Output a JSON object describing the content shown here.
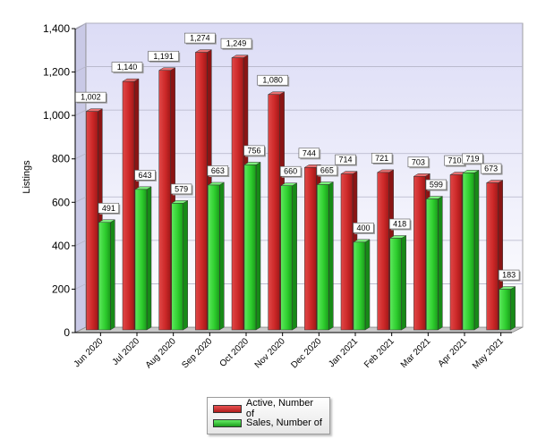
{
  "chart_data": {
    "type": "bar",
    "title": "",
    "xlabel": "",
    "ylabel": "Listings",
    "ylim": [
      0,
      1400
    ],
    "yticks": [
      0,
      200,
      400,
      600,
      800,
      1000,
      1200,
      1400
    ],
    "ytick_labels": [
      "0",
      "200",
      "400",
      "600",
      "800",
      "1,000",
      "1,200",
      "1,400"
    ],
    "grid": true,
    "legend_position": "bottom-center",
    "categories": [
      "Jun 2020",
      "Jul 2020",
      "Aug 2020",
      "Sep 2020",
      "Oct 2020",
      "Nov 2020",
      "Dec 2020",
      "Jan 2021",
      "Feb 2021",
      "Mar 2021",
      "Apr 2021",
      "May 2021"
    ],
    "series": [
      {
        "name": "Active, Number of",
        "color": "#d42a2a",
        "values": [
          1002,
          1140,
          1191,
          1274,
          1249,
          1080,
          744,
          714,
          721,
          703,
          710,
          673
        ],
        "labels": [
          "1,002",
          "1,140",
          "1,191",
          "1,274",
          "1,249",
          "1,080",
          "744",
          "714",
          "721",
          "703",
          "710",
          "673"
        ]
      },
      {
        "name": "Sales, Number of",
        "color": "#2fcf2f",
        "values": [
          491,
          643,
          579,
          663,
          756,
          660,
          665,
          400,
          418,
          599,
          719,
          183
        ],
        "labels": [
          "491",
          "643",
          "579",
          "663",
          "756",
          "660",
          "665",
          "400",
          "418",
          "599",
          "719",
          "183"
        ]
      }
    ]
  }
}
